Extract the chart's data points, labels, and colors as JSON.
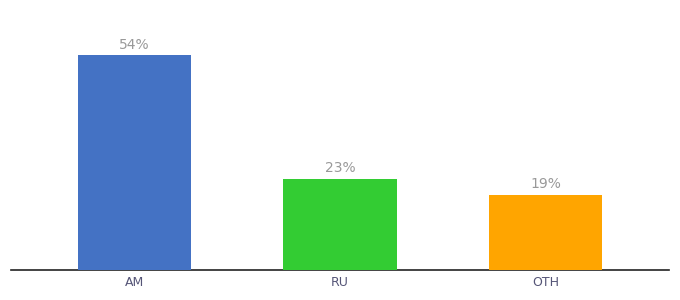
{
  "categories": [
    "AM",
    "RU",
    "OTH"
  ],
  "values": [
    54,
    23,
    19
  ],
  "labels": [
    "54%",
    "23%",
    "19%"
  ],
  "bar_colors": [
    "#4472C4",
    "#33CC33",
    "#FFA500"
  ],
  "background_color": "#ffffff",
  "label_color": "#999999",
  "label_fontsize": 10,
  "tick_fontsize": 9,
  "tick_color": "#555577",
  "ylim": [
    0,
    65
  ],
  "bar_width": 0.55,
  "figsize": [
    6.8,
    3.0
  ],
  "dpi": 100
}
